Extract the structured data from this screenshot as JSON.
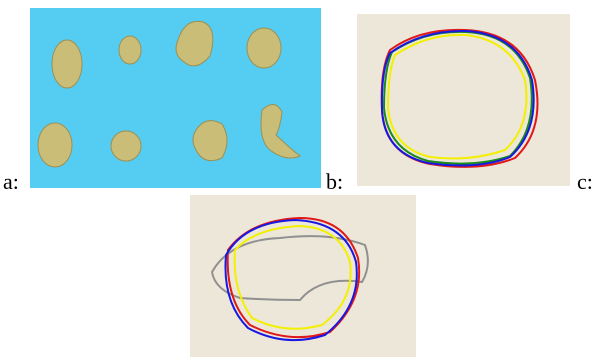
{
  "labels": [
    "a:",
    "b:",
    "c:"
  ]
}
